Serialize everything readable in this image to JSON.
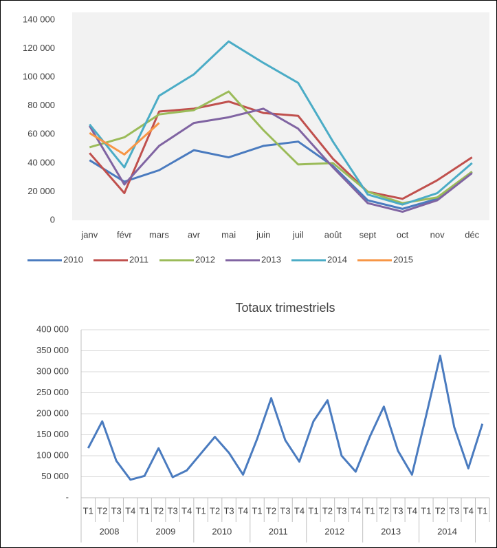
{
  "chart_data": [
    {
      "type": "line",
      "categories": [
        "janv",
        "févr",
        "mars",
        "avr",
        "mai",
        "juin",
        "juil",
        "août",
        "sept",
        "oct",
        "nov",
        "déc"
      ],
      "series": [
        {
          "name": "2010",
          "color": "#4a7bbf",
          "values": [
            42000,
            27000,
            35000,
            49000,
            44000,
            52000,
            55000,
            38000,
            14000,
            8000,
            15000,
            34000
          ]
        },
        {
          "name": "2011",
          "color": "#c0504d",
          "values": [
            47000,
            19000,
            76000,
            78000,
            83000,
            75000,
            73000,
            43000,
            20000,
            15000,
            28000,
            44000
          ]
        },
        {
          "name": "2012",
          "color": "#9bbb59",
          "values": [
            51000,
            58000,
            74000,
            77000,
            90000,
            63000,
            39000,
            40000,
            20000,
            12000,
            16000,
            34000
          ]
        },
        {
          "name": "2013",
          "color": "#8064a2",
          "values": [
            66000,
            25000,
            52000,
            68000,
            72000,
            78000,
            64000,
            37000,
            12000,
            6000,
            14000,
            33000
          ]
        },
        {
          "name": "2014",
          "color": "#4bacc6",
          "values": [
            67000,
            37000,
            87000,
            102000,
            125000,
            110000,
            96000,
            55000,
            18000,
            11000,
            19000,
            40000
          ]
        },
        {
          "name": "2015",
          "color": "#f79646",
          "values": [
            61000,
            46000,
            68000,
            null,
            null,
            null,
            null,
            null,
            null,
            null,
            null,
            null
          ]
        }
      ],
      "ylim": [
        0,
        140000
      ],
      "yticks": [
        0,
        {
          "value": 20000,
          "label": "20 000"
        },
        {
          "value": 40000,
          "label": "40 000"
        },
        {
          "value": 60000,
          "label": "60 000"
        },
        {
          "value": 80000,
          "label": "80 000"
        },
        {
          "value": 100000,
          "label": "100 000"
        },
        {
          "value": 120000,
          "label": "120 000"
        },
        {
          "value": 140000,
          "label": "140 000"
        }
      ],
      "grid": false,
      "legend": "bottom"
    },
    {
      "type": "line",
      "title": "Totaux trimestriels",
      "groups": [
        {
          "label": "2008",
          "categories": [
            "T1",
            "T2",
            "T3",
            "T4"
          ]
        },
        {
          "label": "2009",
          "categories": [
            "T1",
            "T2",
            "T3",
            "T4"
          ]
        },
        {
          "label": "2010",
          "categories": [
            "T1",
            "T2",
            "T3",
            "T4"
          ]
        },
        {
          "label": "2011",
          "categories": [
            "T1",
            "T2",
            "T3",
            "T4"
          ]
        },
        {
          "label": "2012",
          "categories": [
            "T1",
            "T2",
            "T3",
            "T4"
          ]
        },
        {
          "label": "2013",
          "categories": [
            "T1",
            "T2",
            "T3",
            "T4"
          ]
        },
        {
          "label": "2014",
          "categories": [
            "T1",
            "T2",
            "T3",
            "T4"
          ]
        },
        {
          "label": null,
          "categories": [
            "T1"
          ]
        }
      ],
      "series": [
        {
          "color": "#4a7bbf",
          "values": [
            118000,
            182000,
            88000,
            43000,
            52000,
            118000,
            49000,
            65000,
            105000,
            145000,
            107000,
            55000,
            140000,
            237000,
            137000,
            86000,
            182000,
            232000,
            100000,
            62000,
            145000,
            217000,
            112000,
            55000,
            195000,
            338000,
            168000,
            70000,
            176000
          ]
        }
      ],
      "ylim": [
        0,
        400000
      ],
      "yticks": [
        {
          "value": 0,
          "label": "-"
        },
        {
          "value": 50000,
          "label": "50 000"
        },
        {
          "value": 100000,
          "label": "100 000"
        },
        {
          "value": 150000,
          "label": "150 000"
        },
        {
          "value": 200000,
          "label": "200 000"
        },
        {
          "value": 250000,
          "label": "250 000"
        },
        {
          "value": 300000,
          "label": "300 000"
        },
        {
          "value": 350000,
          "label": "350 000"
        },
        {
          "value": 400000,
          "label": "400 000"
        }
      ],
      "grid": true
    }
  ]
}
